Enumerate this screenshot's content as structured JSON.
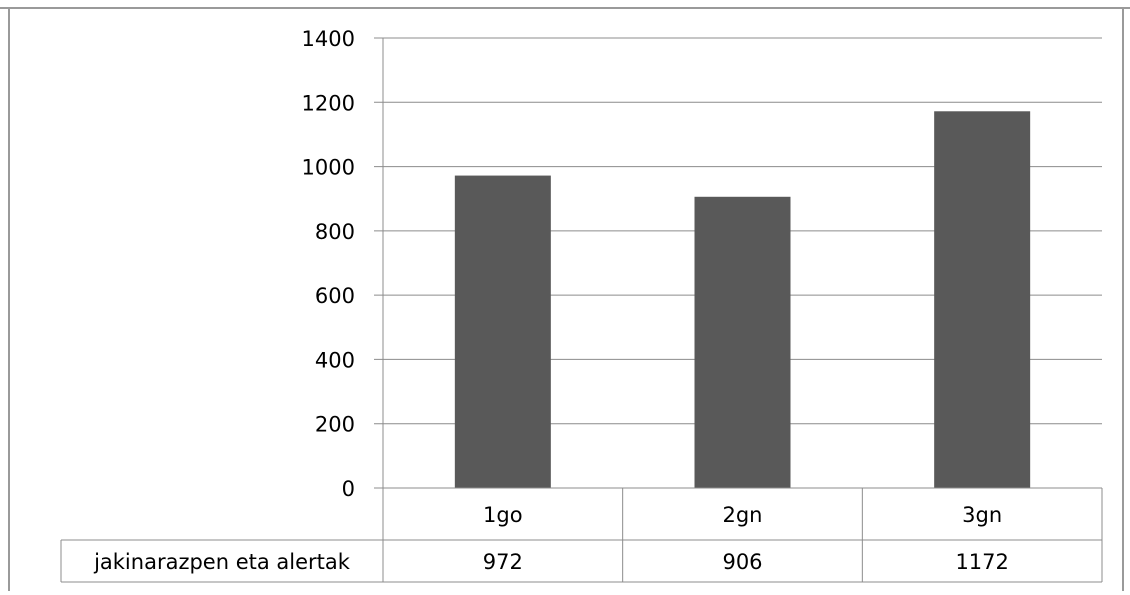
{
  "chart_data": {
    "type": "bar",
    "categories": [
      "1go",
      "2gn",
      "3gn"
    ],
    "series": [
      {
        "name": "jakinarazpen eta alertak",
        "values": [
          972,
          906,
          1172
        ]
      }
    ],
    "data_labels": [
      "972",
      "906",
      "1172"
    ],
    "ylim": [
      0,
      1400
    ],
    "yticks": [
      "0",
      "200",
      "400",
      "600",
      "800",
      "1000",
      "1200",
      "1400"
    ],
    "grid": true,
    "data_table": true,
    "bar_color": "#595959"
  }
}
